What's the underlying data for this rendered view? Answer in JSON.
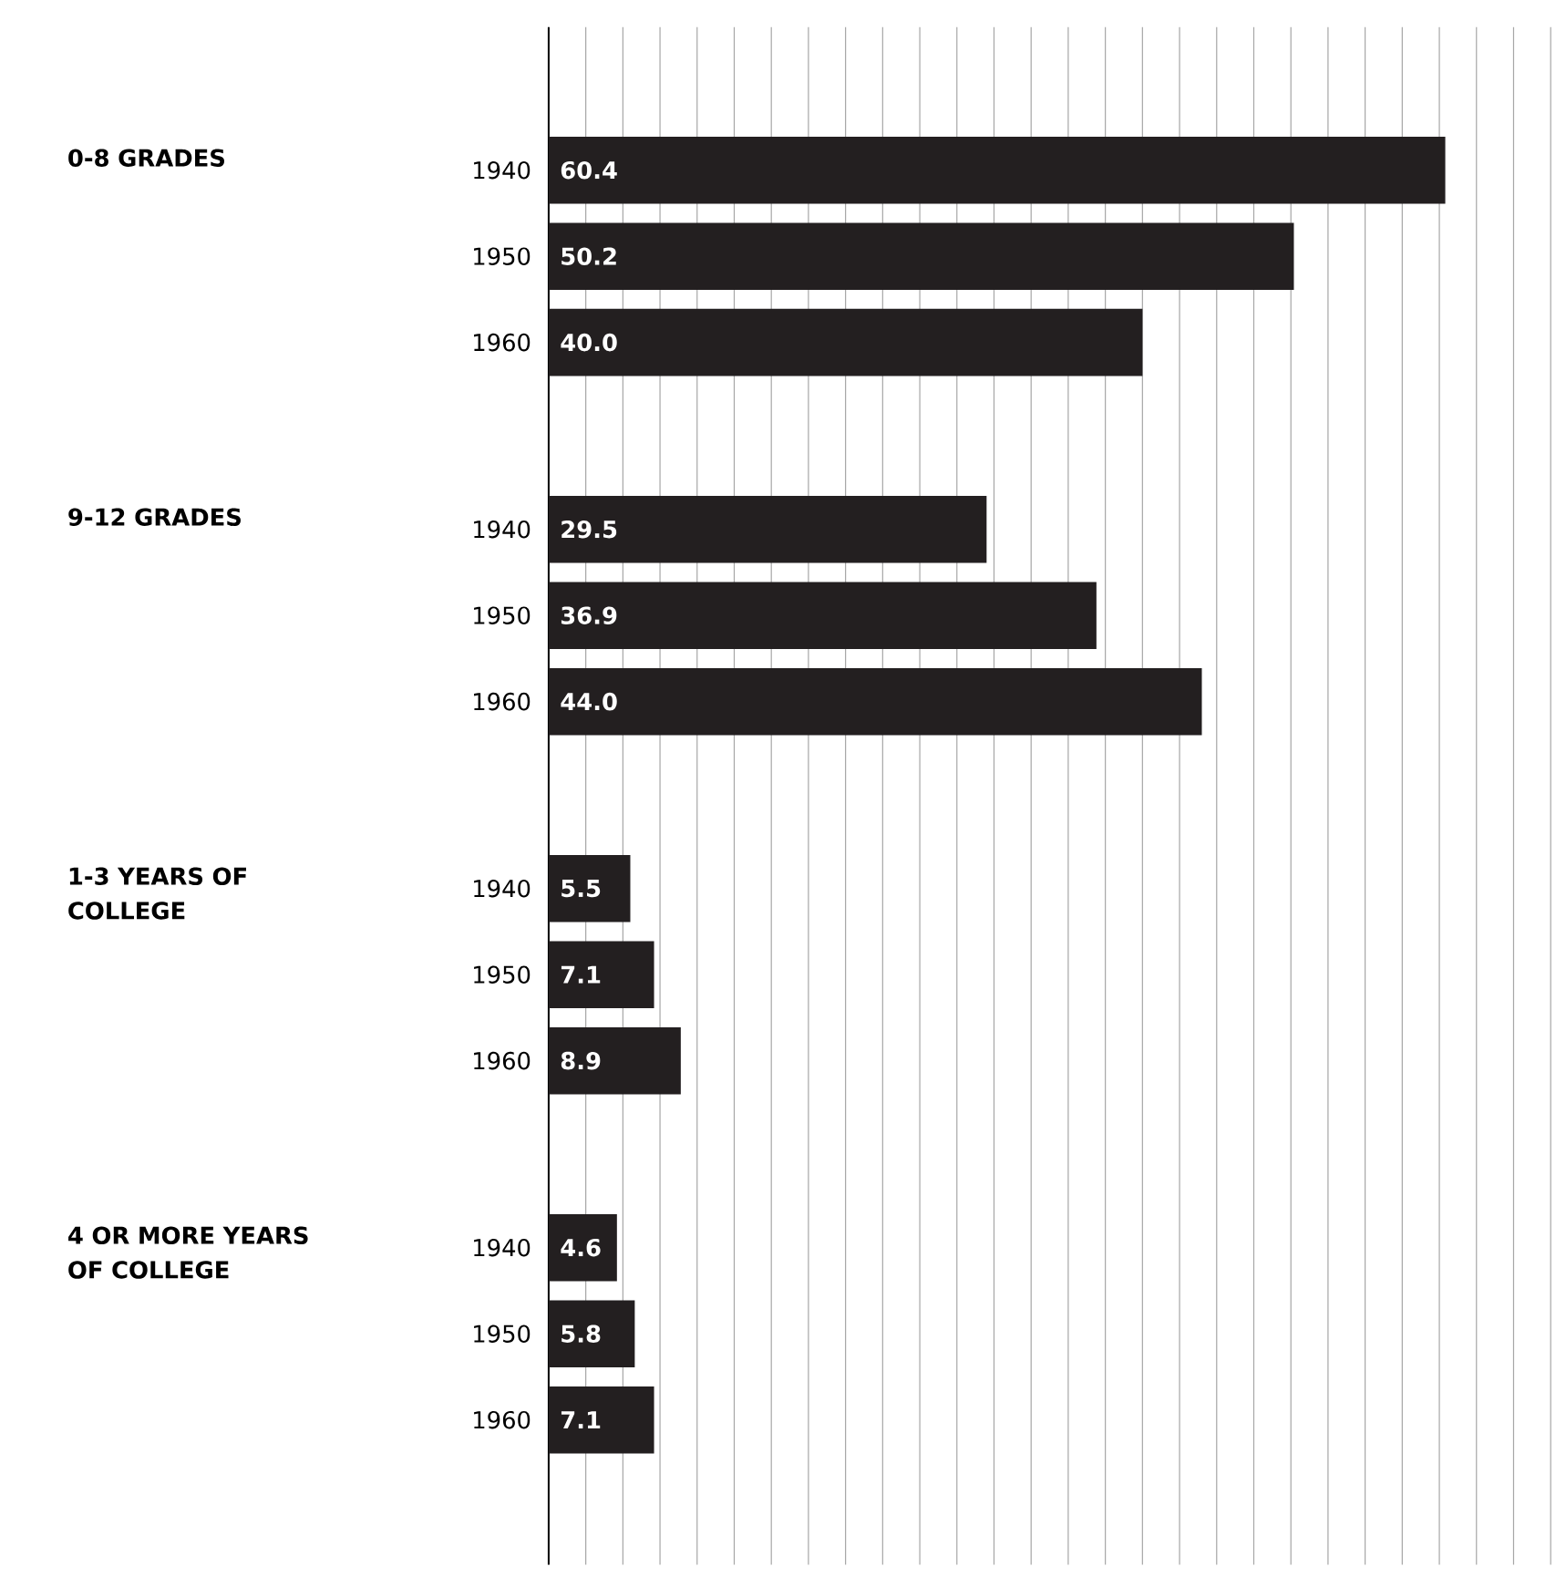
{
  "chart_data": {
    "type": "bar",
    "orientation": "horizontal",
    "categories": [
      "1940",
      "1950",
      "1960",
      "1940",
      "1950",
      "1960",
      "1940",
      "1950",
      "1960",
      "1940",
      "1950",
      "1960"
    ],
    "values": [
      60.4,
      50.2,
      40.0,
      29.5,
      36.9,
      44.0,
      5.5,
      7.1,
      8.9,
      4.6,
      5.8,
      7.1
    ],
    "value_labels": [
      "60.4",
      "50.2",
      "40.0",
      "29.5",
      "36.9",
      "44.0",
      "5.5",
      "7.1",
      "8.9",
      "4.6",
      "5.8",
      "7.1"
    ],
    "color": "#231f20",
    "annotations": [
      "0-8 GRADES",
      "9-12 GRADES",
      "1-3 YEARS OF COLLEGE",
      "4 OR MORE YEARS OF COLLEGE"
    ],
    "grid": "x",
    "tick_labels": "y"
  }
}
